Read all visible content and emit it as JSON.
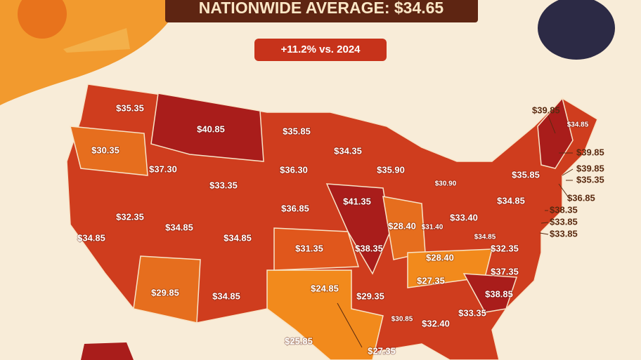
{
  "header": {
    "title": "NATIONWIDE AVERAGE: $34.65",
    "change": "+11.2% vs. 2024"
  },
  "map": {
    "labels": [
      "$35.35",
      "$30.35",
      "$34.85",
      "$32.35",
      "$37.30",
      "$40.85",
      "$33.35",
      "$34.85",
      "$34.85",
      "$29.85",
      "$34.85",
      "$35.85",
      "$36.30",
      "$36.85",
      "$31.35",
      "$24.85",
      "$25.85",
      "$34.35",
      "$41.35",
      "$38.35",
      "$29.35",
      "$27.35",
      "$35.90",
      "$28.40",
      "$30.90",
      "$31.40",
      "$33.40",
      "$28.40",
      "$27.35",
      "$30.85",
      "$32.40",
      "$33.35",
      "$38.85",
      "$37.35",
      "$32.35",
      "$34.85",
      "$34.85",
      "$35.85",
      "$34.85",
      "$39.85",
      "$39.85",
      "$39.85",
      "$35.35",
      "$36.85",
      "$38.35",
      "$33.85",
      "$33.85"
    ]
  }
}
